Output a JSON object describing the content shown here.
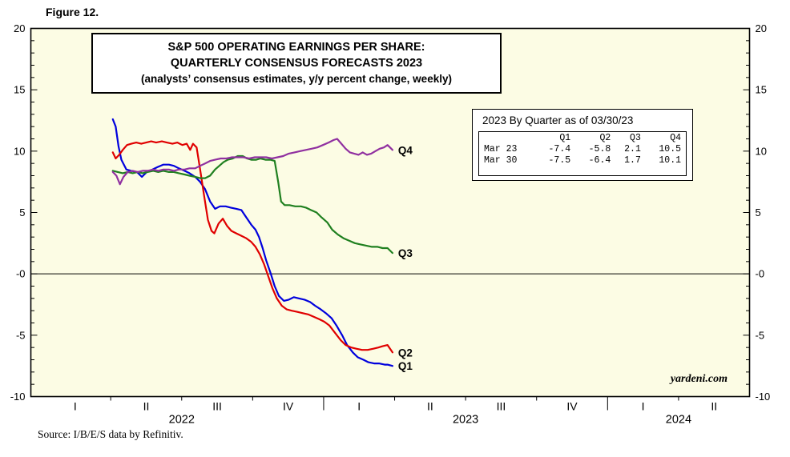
{
  "figure_label": "Figure 12.",
  "title": {
    "line1": "S&P 500 OPERATING EARNINGS PER SHARE:",
    "line2": "QUARTERLY CONSENSUS FORECASTS 2023",
    "line3": "(analysts’ consensus estimates, y/y percent change, weekly)"
  },
  "inset": {
    "title": "2023 By Quarter as of 03/30/23",
    "columns": [
      "Q1",
      "Q2",
      "Q3",
      "Q4"
    ],
    "rows": [
      {
        "label": "Mar 23",
        "values": [
          "-7.4",
          "-5.8",
          "2.1",
          "10.5"
        ]
      },
      {
        "label": "Mar 30",
        "values": [
          "-7.5",
          "-6.4",
          "1.7",
          "10.1"
        ]
      }
    ]
  },
  "watermark": "yardeni.com",
  "source": "Source: I/B/E/S data by Refinitiv.",
  "colors": {
    "plot_bg": "#FCFCE4",
    "axis": "#000000",
    "q1": "#0000DD",
    "q2": "#E00000",
    "q3": "#208020",
    "q4": "#9030A0"
  },
  "chart_data": {
    "type": "line",
    "title": "S&P 500 Operating Earnings Per Share: Quarterly Consensus Forecasts 2023 (analysts' consensus estimates, y/y percent change, weekly)",
    "x_unit": "quarters since 2022-01-01 (weekly observations)",
    "x_range": [
      -0.125,
      10.0
    ],
    "y_range": [
      -10,
      20
    ],
    "ylabel": "y/y percent change",
    "grid": false,
    "legend_position": "line-end-labels",
    "y_major_ticks": [
      -10,
      -5,
      0,
      5,
      10,
      15,
      20
    ],
    "y_tick_labels": [
      "-10",
      "-5",
      "-0",
      "5",
      "10",
      "15",
      "20"
    ],
    "y_minor_step": 1,
    "x_quarter_ticks": [
      1,
      2,
      3,
      5,
      6,
      7,
      9
    ],
    "x_year_ticks": [
      4,
      8
    ],
    "x_tick_labels": [
      {
        "pos": 0.5,
        "label": "I"
      },
      {
        "pos": 1.5,
        "label": "II"
      },
      {
        "pos": 2.5,
        "label": "III"
      },
      {
        "pos": 3.5,
        "label": "IV"
      },
      {
        "pos": 4.5,
        "label": "I"
      },
      {
        "pos": 5.5,
        "label": "II"
      },
      {
        "pos": 6.5,
        "label": "III"
      },
      {
        "pos": 7.5,
        "label": "IV"
      },
      {
        "pos": 8.5,
        "label": "I"
      },
      {
        "pos": 9.5,
        "label": "II"
      }
    ],
    "year_labels": [
      {
        "pos": 2,
        "label": "2022"
      },
      {
        "pos": 6,
        "label": "2023"
      },
      {
        "pos": 9,
        "label": "2024"
      }
    ],
    "series": [
      {
        "name": "Q1",
        "color_key": "q1",
        "points": [
          [
            1.03,
            12.6
          ],
          [
            1.07,
            12.0
          ],
          [
            1.11,
            10.4
          ],
          [
            1.15,
            9.3
          ],
          [
            1.22,
            8.5
          ],
          [
            1.29,
            8.4
          ],
          [
            1.37,
            8.3
          ],
          [
            1.44,
            7.9
          ],
          [
            1.51,
            8.3
          ],
          [
            1.59,
            8.5
          ],
          [
            1.66,
            8.7
          ],
          [
            1.74,
            8.9
          ],
          [
            1.82,
            8.9
          ],
          [
            1.89,
            8.8
          ],
          [
            1.96,
            8.6
          ],
          [
            2.04,
            8.4
          ],
          [
            2.11,
            8.2
          ],
          [
            2.19,
            7.9
          ],
          [
            2.26,
            7.5
          ],
          [
            2.33,
            6.9
          ],
          [
            2.4,
            5.9
          ],
          [
            2.47,
            5.3
          ],
          [
            2.54,
            5.5
          ],
          [
            2.62,
            5.5
          ],
          [
            2.69,
            5.4
          ],
          [
            2.77,
            5.3
          ],
          [
            2.84,
            5.2
          ],
          [
            2.91,
            4.6
          ],
          [
            2.98,
            4.0
          ],
          [
            3.04,
            3.6
          ],
          [
            3.09,
            3.0
          ],
          [
            3.14,
            2.1
          ],
          [
            3.19,
            1.1
          ],
          [
            3.25,
            0.1
          ],
          [
            3.31,
            -1.0
          ],
          [
            3.37,
            -1.8
          ],
          [
            3.44,
            -2.2
          ],
          [
            3.51,
            -2.1
          ],
          [
            3.58,
            -1.9
          ],
          [
            3.65,
            -2.0
          ],
          [
            3.73,
            -2.1
          ],
          [
            3.81,
            -2.3
          ],
          [
            3.88,
            -2.6
          ],
          [
            3.96,
            -2.9
          ],
          [
            4.03,
            -3.2
          ],
          [
            4.11,
            -3.6
          ],
          [
            4.18,
            -4.2
          ],
          [
            4.26,
            -5.0
          ],
          [
            4.33,
            -5.8
          ],
          [
            4.41,
            -6.4
          ],
          [
            4.48,
            -6.8
          ],
          [
            4.56,
            -7.0
          ],
          [
            4.63,
            -7.2
          ],
          [
            4.71,
            -7.3
          ],
          [
            4.78,
            -7.3
          ],
          [
            4.86,
            -7.4
          ],
          [
            4.9,
            -7.4
          ],
          [
            4.97,
            -7.5
          ]
        ]
      },
      {
        "name": "Q2",
        "color_key": "q2",
        "points": [
          [
            1.03,
            9.9
          ],
          [
            1.07,
            9.4
          ],
          [
            1.12,
            9.7
          ],
          [
            1.17,
            10.1
          ],
          [
            1.23,
            10.5
          ],
          [
            1.29,
            10.6
          ],
          [
            1.36,
            10.7
          ],
          [
            1.43,
            10.6
          ],
          [
            1.5,
            10.7
          ],
          [
            1.57,
            10.8
          ],
          [
            1.64,
            10.7
          ],
          [
            1.72,
            10.8
          ],
          [
            1.79,
            10.7
          ],
          [
            1.87,
            10.6
          ],
          [
            1.94,
            10.7
          ],
          [
            2.01,
            10.5
          ],
          [
            2.07,
            10.6
          ],
          [
            2.12,
            10.1
          ],
          [
            2.16,
            10.6
          ],
          [
            2.21,
            10.3
          ],
          [
            2.26,
            8.5
          ],
          [
            2.31,
            6.6
          ],
          [
            2.37,
            4.4
          ],
          [
            2.42,
            3.5
          ],
          [
            2.46,
            3.3
          ],
          [
            2.52,
            4.1
          ],
          [
            2.58,
            4.5
          ],
          [
            2.64,
            3.9
          ],
          [
            2.7,
            3.5
          ],
          [
            2.77,
            3.3
          ],
          [
            2.84,
            3.1
          ],
          [
            2.91,
            2.9
          ],
          [
            2.98,
            2.6
          ],
          [
            3.04,
            2.2
          ],
          [
            3.1,
            1.6
          ],
          [
            3.16,
            0.8
          ],
          [
            3.22,
            -0.2
          ],
          [
            3.28,
            -1.2
          ],
          [
            3.34,
            -2.0
          ],
          [
            3.41,
            -2.6
          ],
          [
            3.48,
            -2.9
          ],
          [
            3.55,
            -3.0
          ],
          [
            3.63,
            -3.1
          ],
          [
            3.7,
            -3.2
          ],
          [
            3.78,
            -3.3
          ],
          [
            3.86,
            -3.5
          ],
          [
            3.94,
            -3.7
          ],
          [
            4.01,
            -3.9
          ],
          [
            4.08,
            -4.2
          ],
          [
            4.16,
            -4.8
          ],
          [
            4.24,
            -5.4
          ],
          [
            4.31,
            -5.8
          ],
          [
            4.39,
            -6.0
          ],
          [
            4.46,
            -6.1
          ],
          [
            4.54,
            -6.2
          ],
          [
            4.62,
            -6.2
          ],
          [
            4.7,
            -6.1
          ],
          [
            4.77,
            -6.0
          ],
          [
            4.83,
            -5.9
          ],
          [
            4.9,
            -5.8
          ],
          [
            4.97,
            -6.4
          ]
        ]
      },
      {
        "name": "Q3",
        "color_key": "q3",
        "points": [
          [
            1.03,
            8.4
          ],
          [
            1.1,
            8.3
          ],
          [
            1.17,
            8.2
          ],
          [
            1.24,
            8.3
          ],
          [
            1.31,
            8.2
          ],
          [
            1.38,
            8.3
          ],
          [
            1.45,
            8.2
          ],
          [
            1.52,
            8.3
          ],
          [
            1.6,
            8.4
          ],
          [
            1.67,
            8.3
          ],
          [
            1.74,
            8.4
          ],
          [
            1.82,
            8.3
          ],
          [
            1.89,
            8.3
          ],
          [
            1.96,
            8.2
          ],
          [
            2.04,
            8.1
          ],
          [
            2.11,
            8.0
          ],
          [
            2.19,
            7.9
          ],
          [
            2.26,
            7.8
          ],
          [
            2.33,
            7.8
          ],
          [
            2.4,
            8.0
          ],
          [
            2.47,
            8.5
          ],
          [
            2.53,
            8.8
          ],
          [
            2.59,
            9.1
          ],
          [
            2.65,
            9.3
          ],
          [
            2.72,
            9.4
          ],
          [
            2.79,
            9.6
          ],
          [
            2.86,
            9.6
          ],
          [
            2.92,
            9.4
          ],
          [
            2.98,
            9.3
          ],
          [
            3.05,
            9.3
          ],
          [
            3.11,
            9.4
          ],
          [
            3.18,
            9.3
          ],
          [
            3.25,
            9.3
          ],
          [
            3.31,
            9.2
          ],
          [
            3.36,
            7.5
          ],
          [
            3.4,
            5.9
          ],
          [
            3.45,
            5.6
          ],
          [
            3.52,
            5.6
          ],
          [
            3.6,
            5.5
          ],
          [
            3.68,
            5.5
          ],
          [
            3.75,
            5.4
          ],
          [
            3.82,
            5.2
          ],
          [
            3.9,
            5.0
          ],
          [
            3.97,
            4.6
          ],
          [
            4.05,
            4.2
          ],
          [
            4.12,
            3.6
          ],
          [
            4.2,
            3.2
          ],
          [
            4.28,
            2.9
          ],
          [
            4.36,
            2.7
          ],
          [
            4.44,
            2.5
          ],
          [
            4.52,
            2.4
          ],
          [
            4.6,
            2.3
          ],
          [
            4.68,
            2.2
          ],
          [
            4.76,
            2.2
          ],
          [
            4.83,
            2.1
          ],
          [
            4.9,
            2.1
          ],
          [
            4.97,
            1.7
          ]
        ]
      },
      {
        "name": "Q4",
        "color_key": "q4",
        "points": [
          [
            1.03,
            8.3
          ],
          [
            1.08,
            8.0
          ],
          [
            1.13,
            7.3
          ],
          [
            1.18,
            7.9
          ],
          [
            1.24,
            8.3
          ],
          [
            1.31,
            8.4
          ],
          [
            1.38,
            8.3
          ],
          [
            1.45,
            8.4
          ],
          [
            1.52,
            8.4
          ],
          [
            1.6,
            8.5
          ],
          [
            1.67,
            8.4
          ],
          [
            1.74,
            8.5
          ],
          [
            1.82,
            8.5
          ],
          [
            1.89,
            8.4
          ],
          [
            1.96,
            8.5
          ],
          [
            2.04,
            8.5
          ],
          [
            2.11,
            8.6
          ],
          [
            2.19,
            8.6
          ],
          [
            2.26,
            8.8
          ],
          [
            2.33,
            9.0
          ],
          [
            2.4,
            9.2
          ],
          [
            2.47,
            9.3
          ],
          [
            2.55,
            9.4
          ],
          [
            2.63,
            9.4
          ],
          [
            2.71,
            9.5
          ],
          [
            2.79,
            9.5
          ],
          [
            2.87,
            9.5
          ],
          [
            2.95,
            9.4
          ],
          [
            3.03,
            9.5
          ],
          [
            3.11,
            9.5
          ],
          [
            3.19,
            9.5
          ],
          [
            3.27,
            9.4
          ],
          [
            3.35,
            9.5
          ],
          [
            3.43,
            9.6
          ],
          [
            3.51,
            9.8
          ],
          [
            3.59,
            9.9
          ],
          [
            3.67,
            10.0
          ],
          [
            3.75,
            10.1
          ],
          [
            3.83,
            10.2
          ],
          [
            3.91,
            10.3
          ],
          [
            3.99,
            10.5
          ],
          [
            4.07,
            10.7
          ],
          [
            4.14,
            10.9
          ],
          [
            4.19,
            11.0
          ],
          [
            4.25,
            10.6
          ],
          [
            4.31,
            10.2
          ],
          [
            4.37,
            9.9
          ],
          [
            4.43,
            9.8
          ],
          [
            4.49,
            9.7
          ],
          [
            4.55,
            9.9
          ],
          [
            4.61,
            9.7
          ],
          [
            4.67,
            9.8
          ],
          [
            4.73,
            10.0
          ],
          [
            4.79,
            10.2
          ],
          [
            4.85,
            10.3
          ],
          [
            4.9,
            10.5
          ],
          [
            4.97,
            10.1
          ]
        ]
      }
    ]
  }
}
